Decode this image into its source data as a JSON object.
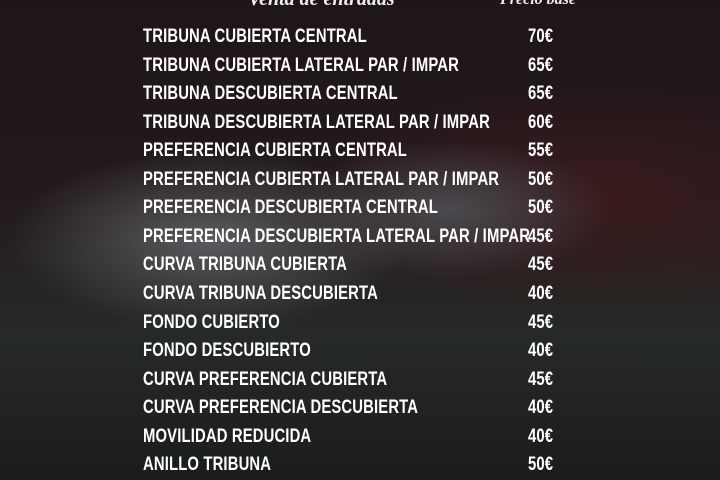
{
  "header": {
    "title": "Venta de entradas",
    "price_col": "Precio base"
  },
  "items": [
    {
      "name": "TRIBUNA CUBIERTA CENTRAL",
      "price": "70€"
    },
    {
      "name": "TRIBUNA CUBIERTA LATERAL PAR / IMPAR",
      "price": "65€"
    },
    {
      "name": "TRIBUNA DESCUBIERTA CENTRAL",
      "price": "65€"
    },
    {
      "name": "TRIBUNA DESCUBIERTA LATERAL PAR / IMPAR",
      "price": "60€"
    },
    {
      "name": "PREFERENCIA CUBIERTA CENTRAL",
      "price": "55€"
    },
    {
      "name": "PREFERENCIA CUBIERTA LATERAL PAR / IMPAR",
      "price": "50€"
    },
    {
      "name": "PREFERENCIA DESCUBIERTA CENTRAL",
      "price": "50€"
    },
    {
      "name": "PREFERENCIA DESCUBIERTA LATERAL PAR / IMPAR",
      "price": "45€"
    },
    {
      "name": "CURVA TRIBUNA CUBIERTA",
      "price": "45€"
    },
    {
      "name": "CURVA TRIBUNA DESCUBIERTA",
      "price": "40€"
    },
    {
      "name": "FONDO CUBIERTO",
      "price": "45€"
    },
    {
      "name": "FONDO DESCUBIERTO",
      "price": "40€"
    },
    {
      "name": "CURVA PREFERENCIA CUBIERTA",
      "price": "45€"
    },
    {
      "name": "CURVA PREFERENCIA DESCUBIERTA",
      "price": "40€"
    },
    {
      "name": "MOVILIDAD REDUCIDA",
      "price": "40€"
    },
    {
      "name": "ANILLO TRIBUNA",
      "price": "50€"
    }
  ]
}
